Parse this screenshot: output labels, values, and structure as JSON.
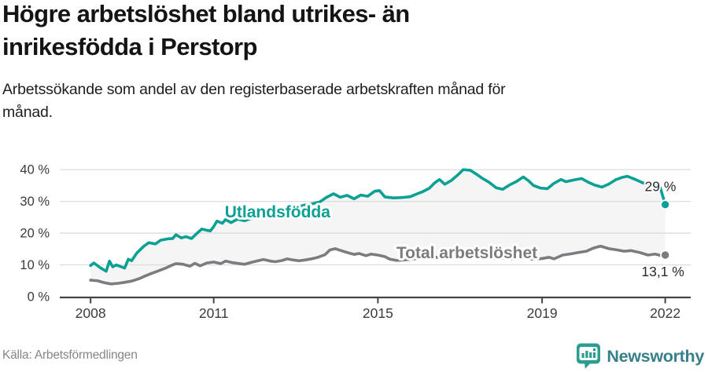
{
  "header": {
    "title_lines": [
      "Högre arbetslöshet bland utrikes- än",
      "inrikesfödda i Perstorp"
    ],
    "subtitle_lines": [
      "Arbetssökande som andel av den registerbaserade arbetskraften månad för",
      "månad."
    ]
  },
  "footer": {
    "source": "Källa: Arbetsförmedlingen",
    "brand": "Newsworthy"
  },
  "colors": {
    "teal": "#0ba094",
    "gray": "#7b7c80",
    "band": "#f5f5f5",
    "grid": "#dcdcdc",
    "axis": "#454545",
    "tick_label": "#3b3b3b",
    "value_label": "#2b2b2b",
    "title": "#141414",
    "source_text": "#868686",
    "brand_text": "#37808a",
    "brand_badge": "#2d9d92"
  },
  "chart_data": {
    "type": "line",
    "title": "Högre arbetslöshet bland utrikes- än inrikesfödda i Perstorp",
    "subtitle": "Arbetssökande som andel av den registerbaserade arbetskraften månad för månad.",
    "xlabel": "",
    "ylabel": "",
    "xlim": [
      2007.25,
      2022.62
    ],
    "ylim": [
      0,
      43
    ],
    "grid": "horizontal",
    "legend_position": "inline-labels",
    "x_ticks": [
      {
        "year": 2008,
        "label": "2008"
      },
      {
        "year": 2011,
        "label": "2011"
      },
      {
        "year": 2015,
        "label": "2015"
      },
      {
        "year": 2019,
        "label": "2019"
      },
      {
        "year": 2022,
        "label": "2022"
      }
    ],
    "y_ticks": [
      {
        "value": 0,
        "label": "0 %"
      },
      {
        "value": 10,
        "label": "10 %"
      },
      {
        "value": 20,
        "label": "20 %"
      },
      {
        "value": 30,
        "label": "30 %"
      },
      {
        "value": 40,
        "label": "40 %"
      }
    ],
    "band_between_series": true,
    "series": [
      {
        "name": "Utlandsfödda",
        "color": "#0ba094",
        "name_label": {
          "year": 2011.27,
          "value": 25.0
        },
        "end_label": {
          "text": "29 %",
          "year": 2021.5,
          "value": 33.3
        },
        "points": [
          [
            2008.0,
            9.8
          ],
          [
            2008.08,
            10.6
          ],
          [
            2008.25,
            9.0
          ],
          [
            2008.38,
            8.0
          ],
          [
            2008.46,
            11.2
          ],
          [
            2008.54,
            9.4
          ],
          [
            2008.63,
            10.0
          ],
          [
            2008.71,
            9.6
          ],
          [
            2008.83,
            9.0
          ],
          [
            2008.92,
            11.8
          ],
          [
            2009.0,
            11.3
          ],
          [
            2009.13,
            13.8
          ],
          [
            2009.29,
            15.8
          ],
          [
            2009.42,
            17.0
          ],
          [
            2009.58,
            16.6
          ],
          [
            2009.71,
            17.8
          ],
          [
            2009.88,
            18.2
          ],
          [
            2010.0,
            18.3
          ],
          [
            2010.08,
            19.5
          ],
          [
            2010.21,
            18.5
          ],
          [
            2010.33,
            18.9
          ],
          [
            2010.46,
            18.3
          ],
          [
            2010.58,
            19.8
          ],
          [
            2010.71,
            21.3
          ],
          [
            2010.83,
            20.9
          ],
          [
            2010.92,
            20.7
          ],
          [
            2011.0,
            22.1
          ],
          [
            2011.08,
            23.8
          ],
          [
            2011.21,
            23.1
          ],
          [
            2011.29,
            24.3
          ],
          [
            2011.42,
            23.3
          ],
          [
            2011.58,
            24.4
          ],
          [
            2011.75,
            23.9
          ],
          [
            2011.92,
            24.7
          ],
          [
            2012.08,
            25.3
          ],
          [
            2012.25,
            25.9
          ],
          [
            2012.42,
            26.5
          ],
          [
            2012.58,
            26.2
          ],
          [
            2012.75,
            27.4
          ],
          [
            2012.92,
            28.0
          ],
          [
            2013.08,
            28.4
          ],
          [
            2013.25,
            28.9
          ],
          [
            2013.42,
            29.3
          ],
          [
            2013.58,
            29.8
          ],
          [
            2013.75,
            31.3
          ],
          [
            2013.92,
            32.4
          ],
          [
            2014.08,
            31.3
          ],
          [
            2014.25,
            31.9
          ],
          [
            2014.42,
            30.8
          ],
          [
            2014.58,
            32.0
          ],
          [
            2014.75,
            31.6
          ],
          [
            2014.92,
            33.2
          ],
          [
            2015.04,
            33.4
          ],
          [
            2015.17,
            31.4
          ],
          [
            2015.38,
            31.1
          ],
          [
            2015.58,
            31.2
          ],
          [
            2015.79,
            31.5
          ],
          [
            2015.96,
            32.4
          ],
          [
            2016.08,
            33.0
          ],
          [
            2016.25,
            34.1
          ],
          [
            2016.38,
            35.8
          ],
          [
            2016.5,
            36.9
          ],
          [
            2016.63,
            35.4
          ],
          [
            2016.79,
            36.6
          ],
          [
            2016.96,
            38.5
          ],
          [
            2017.08,
            40.0
          ],
          [
            2017.25,
            39.8
          ],
          [
            2017.42,
            38.4
          ],
          [
            2017.54,
            37.3
          ],
          [
            2017.71,
            36.0
          ],
          [
            2017.88,
            34.3
          ],
          [
            2018.04,
            33.8
          ],
          [
            2018.21,
            35.2
          ],
          [
            2018.38,
            36.3
          ],
          [
            2018.54,
            37.7
          ],
          [
            2018.67,
            36.5
          ],
          [
            2018.79,
            35.0
          ],
          [
            2018.96,
            34.2
          ],
          [
            2019.13,
            34.0
          ],
          [
            2019.29,
            35.7
          ],
          [
            2019.46,
            36.9
          ],
          [
            2019.58,
            36.2
          ],
          [
            2019.79,
            36.8
          ],
          [
            2019.96,
            37.2
          ],
          [
            2020.13,
            36.0
          ],
          [
            2020.29,
            35.1
          ],
          [
            2020.46,
            34.5
          ],
          [
            2020.63,
            35.5
          ],
          [
            2020.79,
            36.8
          ],
          [
            2020.96,
            37.6
          ],
          [
            2021.08,
            37.9
          ],
          [
            2021.29,
            36.8
          ],
          [
            2021.46,
            35.8
          ],
          [
            2021.63,
            35.2
          ],
          [
            2021.79,
            35.4
          ],
          [
            2021.88,
            34.3
          ],
          [
            2022.0,
            29.0
          ]
        ]
      },
      {
        "name": "Total arbetslöshet",
        "color": "#7b7c80",
        "name_label": {
          "year": 2015.45,
          "value": 12.1
        },
        "end_label": {
          "text": "13,1 %",
          "year": 2021.42,
          "value": 6.4
        },
        "points": [
          [
            2008.0,
            5.2
          ],
          [
            2008.17,
            5.0
          ],
          [
            2008.33,
            4.4
          ],
          [
            2008.5,
            4.0
          ],
          [
            2008.67,
            4.2
          ],
          [
            2008.83,
            4.5
          ],
          [
            2009.0,
            4.9
          ],
          [
            2009.17,
            5.6
          ],
          [
            2009.33,
            6.5
          ],
          [
            2009.5,
            7.4
          ],
          [
            2009.67,
            8.2
          ],
          [
            2009.83,
            9.0
          ],
          [
            2009.96,
            9.8
          ],
          [
            2010.08,
            10.4
          ],
          [
            2010.25,
            10.2
          ],
          [
            2010.42,
            9.6
          ],
          [
            2010.54,
            10.5
          ],
          [
            2010.67,
            9.7
          ],
          [
            2010.83,
            10.6
          ],
          [
            2011.0,
            10.9
          ],
          [
            2011.17,
            10.4
          ],
          [
            2011.29,
            11.2
          ],
          [
            2011.46,
            10.7
          ],
          [
            2011.63,
            10.4
          ],
          [
            2011.75,
            10.2
          ],
          [
            2011.92,
            10.8
          ],
          [
            2012.08,
            11.3
          ],
          [
            2012.21,
            11.7
          ],
          [
            2012.38,
            11.2
          ],
          [
            2012.5,
            11.0
          ],
          [
            2012.67,
            11.4
          ],
          [
            2012.79,
            11.9
          ],
          [
            2012.96,
            11.5
          ],
          [
            2013.08,
            11.3
          ],
          [
            2013.25,
            11.6
          ],
          [
            2013.42,
            12.0
          ],
          [
            2013.54,
            12.4
          ],
          [
            2013.71,
            13.2
          ],
          [
            2013.83,
            14.7
          ],
          [
            2013.96,
            15.1
          ],
          [
            2014.08,
            14.6
          ],
          [
            2014.25,
            13.9
          ],
          [
            2014.42,
            13.3
          ],
          [
            2014.54,
            13.6
          ],
          [
            2014.71,
            12.9
          ],
          [
            2014.83,
            13.4
          ],
          [
            2015.0,
            13.1
          ],
          [
            2015.17,
            12.6
          ],
          [
            2015.29,
            11.8
          ],
          [
            2015.46,
            11.4
          ],
          [
            2015.67,
            11.6
          ],
          [
            2015.88,
            11.9
          ],
          [
            2016.08,
            12.2
          ],
          [
            2016.29,
            12.5
          ],
          [
            2016.54,
            12.3
          ],
          [
            2016.79,
            12.6
          ],
          [
            2017.04,
            12.4
          ],
          [
            2017.29,
            12.7
          ],
          [
            2017.54,
            12.3
          ],
          [
            2017.79,
            12.0
          ],
          [
            2018.04,
            12.2
          ],
          [
            2018.29,
            11.9
          ],
          [
            2018.54,
            12.1
          ],
          [
            2018.79,
            11.8
          ],
          [
            2019.0,
            12.0
          ],
          [
            2019.17,
            12.4
          ],
          [
            2019.29,
            11.9
          ],
          [
            2019.5,
            13.1
          ],
          [
            2019.71,
            13.5
          ],
          [
            2019.88,
            13.9
          ],
          [
            2020.08,
            14.3
          ],
          [
            2020.25,
            15.3
          ],
          [
            2020.42,
            15.9
          ],
          [
            2020.63,
            15.1
          ],
          [
            2020.83,
            14.7
          ],
          [
            2021.0,
            14.3
          ],
          [
            2021.17,
            14.5
          ],
          [
            2021.38,
            13.9
          ],
          [
            2021.58,
            13.1
          ],
          [
            2021.75,
            13.4
          ],
          [
            2021.88,
            13.0
          ],
          [
            2022.0,
            13.1
          ]
        ]
      }
    ]
  }
}
